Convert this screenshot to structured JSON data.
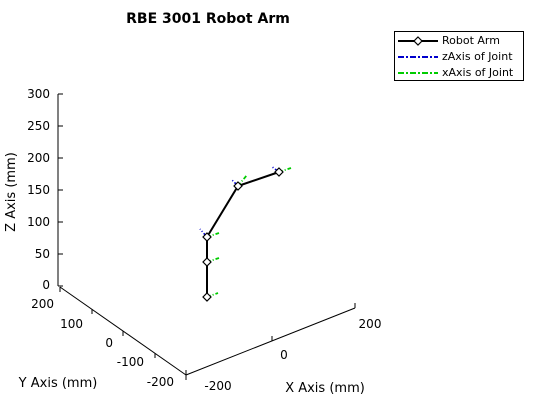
{
  "chart_data": {
    "type": "line",
    "title": "RBE 3001 Robot Arm",
    "xlabel": "X Axis (mm)",
    "ylabel": "Y Axis (mm)",
    "zlabel": "Z Axis (mm)",
    "x_ticks": [
      "-200",
      "0",
      "200"
    ],
    "y_ticks": [
      "200",
      "100",
      "0",
      "-100",
      "-200"
    ],
    "z_ticks": [
      "0",
      "50",
      "100",
      "150",
      "200",
      "250",
      "300"
    ],
    "legend_placement": "top-right",
    "grid": false,
    "series": [
      {
        "name": "Robot Arm",
        "color": "#000000",
        "style": "solid",
        "marker": "diamond"
      },
      {
        "name": "zAxis of Joint",
        "color": "#0000cc",
        "style": "dash-dot"
      },
      {
        "name": "xAxis of Joint",
        "color": "#00cc00",
        "style": "dash-dot"
      }
    ],
    "robot_points_zmm": [
      0,
      55,
      95,
      160,
      175
    ],
    "robot_points_note_visible": false
  }
}
